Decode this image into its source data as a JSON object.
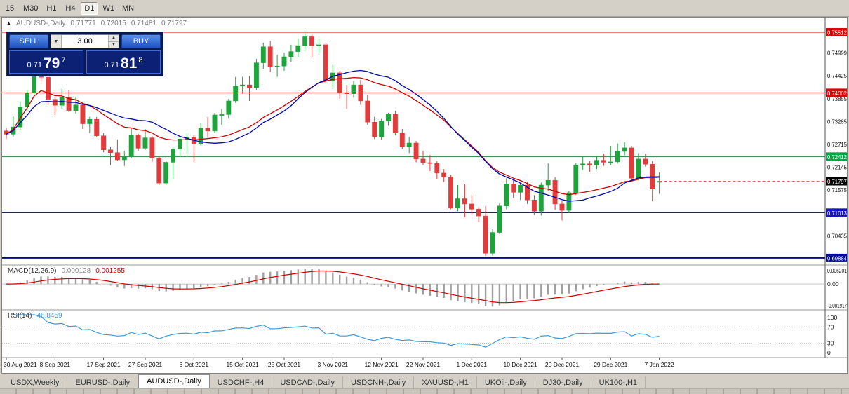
{
  "toolbar": {
    "timeframes": [
      {
        "label": "15",
        "active": false
      },
      {
        "label": "M30",
        "active": false
      },
      {
        "label": "H1",
        "active": false
      },
      {
        "label": "H4",
        "active": false
      },
      {
        "label": "D1",
        "active": true
      },
      {
        "label": "W1",
        "active": false
      },
      {
        "label": "MN",
        "active": false
      }
    ]
  },
  "chart": {
    "title": "AUDUSD-,Daily",
    "ohlc": {
      "open": "0.71771",
      "high": "0.72015",
      "low": "0.71481",
      "close": "0.71797"
    }
  },
  "trade_panel": {
    "sell_label": "SELL",
    "buy_label": "BUY",
    "volume": "3.00",
    "sell_price": {
      "prefix": "0.71",
      "big": "79",
      "sup": "7"
    },
    "buy_price": {
      "prefix": "0.71",
      "big": "81",
      "sup": "8"
    }
  },
  "indicators": {
    "macd": {
      "label": "MACD(12,26,9)",
      "value1": "0.000128",
      "value2": "0.001255",
      "axis": [
        "0.006201",
        "0.00",
        "-0.001917"
      ]
    },
    "rsi": {
      "label": "RSI(14)",
      "value": "46.8459",
      "axis": [
        "100",
        "70",
        "30",
        "0"
      ]
    }
  },
  "tabs": {
    "active_index": 2,
    "items": [
      "USDX,Weekly",
      "EURUSD-,Daily",
      "AUDUSD-,Daily",
      "USDCHF-,H4",
      "USDCAD-,Daily",
      "USDCNH-,Daily",
      "XAUUSD-,H1",
      "UKOil-,Daily",
      "DJ30-,Daily",
      "UK100-,H1"
    ]
  },
  "chart_data": {
    "type": "candlestick",
    "symbol": "AUDUSD",
    "timeframe": "Daily",
    "main": {
      "ylim": [
        0.6976,
        0.756
      ],
      "colors": {
        "up": "#1fa33c",
        "down": "#e23b3b"
      },
      "price_ticks": [
        "0.74999",
        "0.74425",
        "0.73855",
        "0.73285",
        "0.72715",
        "0.72145",
        "0.71575",
        "0.70435"
      ],
      "badges": [
        {
          "text": "0.75512",
          "value": 0.75512,
          "bg": "#e00000"
        },
        {
          "text": "0.74002",
          "value": 0.74002,
          "bg": "#e00000"
        },
        {
          "text": "0.72412",
          "value": 0.72412,
          "bg": "#00a844"
        },
        {
          "text": "0.71797",
          "value": 0.71797,
          "bg": "#000000"
        },
        {
          "text": "0.71013",
          "value": 0.71013,
          "bg": "#1616c8"
        },
        {
          "text": "0.69884",
          "value": 0.69884,
          "bg": "#000a96"
        }
      ],
      "hlines": [
        {
          "value": 0.75512,
          "color": "#e00000",
          "width": 1
        },
        {
          "value": 0.74002,
          "color": "#e00000",
          "width": 1
        },
        {
          "value": 0.72412,
          "color": "#00b44a",
          "width": 1.6
        },
        {
          "value": 0.71013,
          "color": "#1616c8",
          "width": 1.2
        },
        {
          "value": 0.69884,
          "color": "#000a96",
          "width": 2
        }
      ],
      "current_price": 0.71797,
      "current_price_color": "#e06060",
      "ma": [
        {
          "type": "lwma",
          "period": 30,
          "color": "#cc0000"
        },
        {
          "type": "sma",
          "period": 20,
          "color": "#0008b0"
        }
      ]
    },
    "macd": {
      "fast": 12,
      "slow": 26,
      "signal": 9,
      "histogram_color": "#a0a0a0",
      "signal_color": "#cc0000"
    },
    "rsi": {
      "period": 14,
      "color": "#3f9bd8",
      "levels": [
        70,
        30
      ],
      "ylim": [
        0,
        100
      ]
    },
    "dates": [
      {
        "label": "30 Aug 2021",
        "index": 0
      },
      {
        "label": "8 Sep 2021",
        "index": 7
      },
      {
        "label": "17 Sep 2021",
        "index": 14
      },
      {
        "label": "27 Sep 2021",
        "index": 20
      },
      {
        "label": "6 Oct 2021",
        "index": 27
      },
      {
        "label": "15 Oct 2021",
        "index": 34
      },
      {
        "label": "25 Oct 2021",
        "index": 40
      },
      {
        "label": "3 Nov 2021",
        "index": 47
      },
      {
        "label": "12 Nov 2021",
        "index": 54
      },
      {
        "label": "22 Nov 2021",
        "index": 60
      },
      {
        "label": "1 Dec 2021",
        "index": 67
      },
      {
        "label": "10 Dec 2021",
        "index": 74
      },
      {
        "label": "20 Dec 2021",
        "index": 80
      },
      {
        "label": "29 Dec 2021",
        "index": 87
      },
      {
        "label": "7 Jan 2022",
        "index": 94
      }
    ],
    "candles": [
      [
        0.7305,
        0.7312,
        0.7285,
        0.7297
      ],
      [
        0.7297,
        0.7341,
        0.7291,
        0.7315
      ],
      [
        0.7315,
        0.7379,
        0.7308,
        0.7365
      ],
      [
        0.7365,
        0.7408,
        0.7355,
        0.74
      ],
      [
        0.74,
        0.7478,
        0.7395,
        0.7452
      ],
      [
        0.7452,
        0.7462,
        0.7428,
        0.7439
      ],
      [
        0.7439,
        0.7445,
        0.737,
        0.7384
      ],
      [
        0.7384,
        0.739,
        0.7345,
        0.7369
      ],
      [
        0.7369,
        0.741,
        0.736,
        0.7389
      ],
      [
        0.7389,
        0.7407,
        0.7352,
        0.7356
      ],
      [
        0.7356,
        0.739,
        0.7348,
        0.737
      ],
      [
        0.737,
        0.7378,
        0.731,
        0.7323
      ],
      [
        0.7323,
        0.734,
        0.73,
        0.7334
      ],
      [
        0.7334,
        0.734,
        0.7289,
        0.7293
      ],
      [
        0.7293,
        0.73,
        0.7252,
        0.7258
      ],
      [
        0.7258,
        0.7266,
        0.722,
        0.7251
      ],
      [
        0.7251,
        0.7284,
        0.723,
        0.7233
      ],
      [
        0.7233,
        0.7255,
        0.7218,
        0.7241
      ],
      [
        0.7241,
        0.7312,
        0.7238,
        0.7295
      ],
      [
        0.7295,
        0.7298,
        0.7255,
        0.7262
      ],
      [
        0.7262,
        0.731,
        0.7258,
        0.7288
      ],
      [
        0.7288,
        0.7292,
        0.7228,
        0.7238
      ],
      [
        0.7238,
        0.7242,
        0.717,
        0.7175
      ],
      [
        0.7175,
        0.723,
        0.717,
        0.7227
      ],
      [
        0.7227,
        0.7265,
        0.7185,
        0.726
      ],
      [
        0.726,
        0.729,
        0.724,
        0.7285
      ],
      [
        0.7285,
        0.73,
        0.7248,
        0.729
      ],
      [
        0.729,
        0.7295,
        0.7227,
        0.7273
      ],
      [
        0.7273,
        0.7324,
        0.7268,
        0.7312
      ],
      [
        0.7312,
        0.734,
        0.7288,
        0.7305
      ],
      [
        0.7305,
        0.735,
        0.73,
        0.7345
      ],
      [
        0.7345,
        0.736,
        0.732,
        0.7346
      ],
      [
        0.7346,
        0.7385,
        0.7336,
        0.738
      ],
      [
        0.738,
        0.744,
        0.7375,
        0.7417
      ],
      [
        0.7417,
        0.744,
        0.7398,
        0.742
      ],
      [
        0.742,
        0.7442,
        0.738,
        0.7413
      ],
      [
        0.7413,
        0.7485,
        0.7408,
        0.7475
      ],
      [
        0.7475,
        0.7525,
        0.746,
        0.7515
      ],
      [
        0.7515,
        0.753,
        0.7452,
        0.7465
      ],
      [
        0.7465,
        0.7495,
        0.744,
        0.7467
      ],
      [
        0.7467,
        0.75,
        0.7455,
        0.749
      ],
      [
        0.749,
        0.752,
        0.7478,
        0.7503
      ],
      [
        0.7503,
        0.7536,
        0.749,
        0.7518
      ],
      [
        0.7518,
        0.7551,
        0.7505,
        0.754
      ],
      [
        0.754,
        0.7546,
        0.749,
        0.7518
      ],
      [
        0.7518,
        0.7535,
        0.75,
        0.752
      ],
      [
        0.752,
        0.7525,
        0.7428,
        0.743
      ],
      [
        0.743,
        0.747,
        0.741,
        0.745
      ],
      [
        0.745,
        0.7455,
        0.7385,
        0.74
      ],
      [
        0.74,
        0.742,
        0.736,
        0.7398
      ],
      [
        0.7398,
        0.743,
        0.7388,
        0.742
      ],
      [
        0.742,
        0.7432,
        0.737,
        0.738
      ],
      [
        0.738,
        0.7395,
        0.732,
        0.7327
      ],
      [
        0.7327,
        0.734,
        0.7285,
        0.729
      ],
      [
        0.729,
        0.7335,
        0.7283,
        0.733
      ],
      [
        0.733,
        0.735,
        0.7318,
        0.7347
      ],
      [
        0.7347,
        0.7355,
        0.7295,
        0.73
      ],
      [
        0.73,
        0.731,
        0.726,
        0.7266
      ],
      [
        0.7266,
        0.729,
        0.725,
        0.7275
      ],
      [
        0.7275,
        0.728,
        0.7227,
        0.7235
      ],
      [
        0.7235,
        0.7255,
        0.722,
        0.7226
      ],
      [
        0.7226,
        0.7245,
        0.7205,
        0.7224
      ],
      [
        0.7224,
        0.723,
        0.7185,
        0.72
      ],
      [
        0.72,
        0.721,
        0.7178,
        0.719
      ],
      [
        0.719,
        0.7195,
        0.711,
        0.7113
      ],
      [
        0.7113,
        0.717,
        0.7105,
        0.7136
      ],
      [
        0.7136,
        0.7172,
        0.709,
        0.7123
      ],
      [
        0.7123,
        0.7145,
        0.7098,
        0.711
      ],
      [
        0.711,
        0.7115,
        0.7078,
        0.7093
      ],
      [
        0.7093,
        0.7118,
        0.6993,
        0.7
      ],
      [
        0.7,
        0.706,
        0.6994,
        0.7052
      ],
      [
        0.7052,
        0.7125,
        0.7048,
        0.7118
      ],
      [
        0.7118,
        0.7187,
        0.711,
        0.7173
      ],
      [
        0.7173,
        0.7185,
        0.7138,
        0.7152
      ],
      [
        0.7152,
        0.7175,
        0.7133,
        0.717
      ],
      [
        0.717,
        0.7177,
        0.7123,
        0.7133
      ],
      [
        0.7133,
        0.7145,
        0.7096,
        0.7105
      ],
      [
        0.7105,
        0.7176,
        0.7094,
        0.717
      ],
      [
        0.717,
        0.7224,
        0.7155,
        0.7182
      ],
      [
        0.7182,
        0.719,
        0.7108,
        0.7123
      ],
      [
        0.7123,
        0.713,
        0.7082,
        0.7107
      ],
      [
        0.7107,
        0.7155,
        0.71,
        0.7151
      ],
      [
        0.7151,
        0.7225,
        0.7145,
        0.722
      ],
      [
        0.722,
        0.7242,
        0.7208,
        0.7223
      ],
      [
        0.7223,
        0.723,
        0.7203,
        0.722
      ],
      [
        0.722,
        0.7243,
        0.721,
        0.7232
      ],
      [
        0.7232,
        0.7248,
        0.7218,
        0.7227
      ],
      [
        0.7227,
        0.7268,
        0.722,
        0.7228
      ],
      [
        0.7228,
        0.7274,
        0.7224,
        0.7254
      ],
      [
        0.7254,
        0.7277,
        0.7244,
        0.7263
      ],
      [
        0.7263,
        0.7268,
        0.718,
        0.7187
      ],
      [
        0.7187,
        0.725,
        0.7182,
        0.7235
      ],
      [
        0.7235,
        0.7248,
        0.7216,
        0.7222
      ],
      [
        0.7222,
        0.723,
        0.713,
        0.716
      ],
      [
        0.71771,
        0.72015,
        0.71481,
        0.71797
      ]
    ]
  }
}
